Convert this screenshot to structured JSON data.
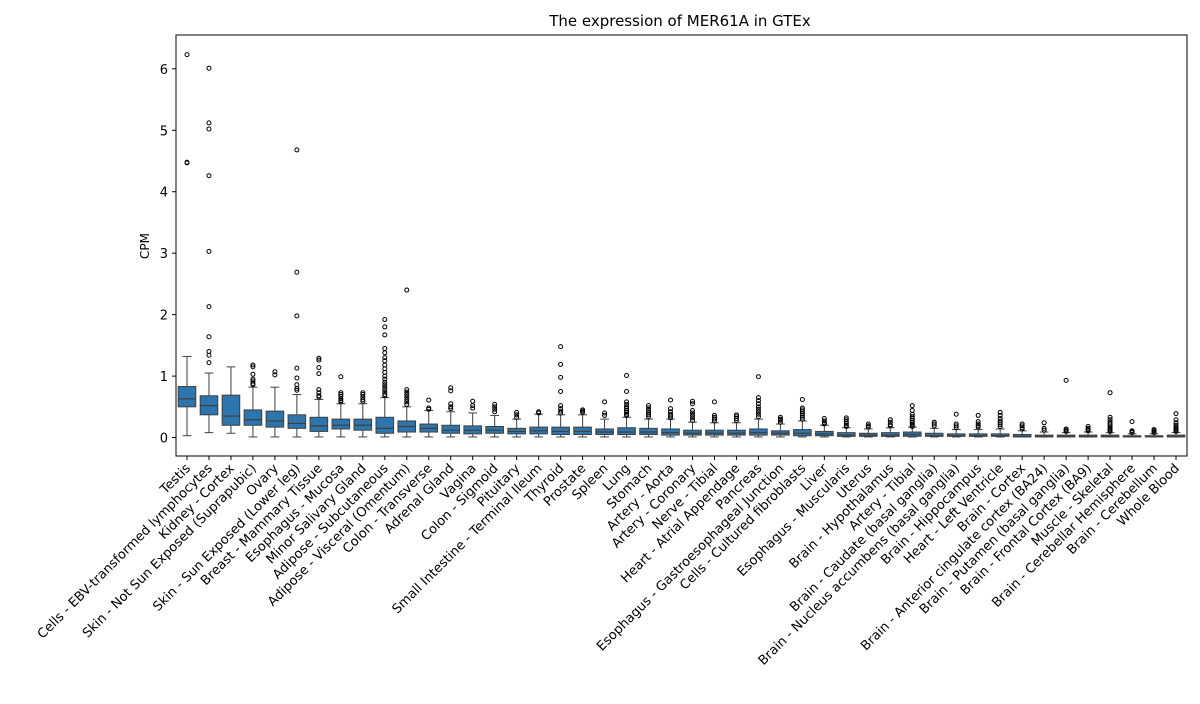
{
  "chart_data": {
    "type": "box",
    "title": "The expression of MER61A in GTEx",
    "xlabel": "",
    "ylabel": "CPM",
    "ylim": [
      -0.3,
      6.55
    ],
    "yticks": [
      0,
      1,
      2,
      3,
      4,
      5,
      6
    ],
    "grid": false,
    "legend": "none",
    "box_color": "#2e75ae",
    "categories": [
      "Testis",
      "Cells - EBV-transformed lymphocytes",
      "Kidney - Cortex",
      "Skin - Not Sun Exposed (Suprapubic)",
      "Ovary",
      "Skin - Sun Exposed (Lower leg)",
      "Breast - Mammary Tissue",
      "Esophagus - Mucosa",
      "Minor Salivary Gland",
      "Adipose - Subcutaneous",
      "Adipose - Visceral (Omentum)",
      "Colon - Transverse",
      "Adrenal Gland",
      "Vagina",
      "Colon - Sigmoid",
      "Pituitary",
      "Small Intestine - Terminal Ileum",
      "Thyroid",
      "Prostate",
      "Spleen",
      "Lung",
      "Stomach",
      "Artery - Aorta",
      "Artery - Coronary",
      "Nerve - Tibial",
      "Heart - Atrial Appendage",
      "Pancreas",
      "Esophagus - Gastroesophageal Junction",
      "Cells - Cultured fibroblasts",
      "Liver",
      "Esophagus - Muscularis",
      "Uterus",
      "Brain - Hypothalamus",
      "Artery - Tibial",
      "Brain - Caudate (basal ganglia)",
      "Brain - Nucleus accumbens (basal ganglia)",
      "Brain - Hippocampus",
      "Heart - Left Ventricle",
      "Brain - Cortex",
      "Brain - Anterior cingulate cortex (BA24)",
      "Brain - Putamen (basal ganglia)",
      "Brain - Frontal Cortex (BA9)",
      "Muscle - Skeletal",
      "Brain - Cerebellar Hemisphere",
      "Brain - Cerebellum",
      "Whole Blood"
    ],
    "boxes": [
      {
        "whislo": 0.03,
        "q1": 0.5,
        "med": 0.63,
        "q3": 0.83,
        "whishi": 1.32,
        "fliers": [
          6.23,
          4.48,
          4.47
        ]
      },
      {
        "whislo": 0.08,
        "q1": 0.37,
        "med": 0.52,
        "q3": 0.68,
        "whishi": 1.05,
        "fliers": [
          6.01,
          5.12,
          5.02,
          4.26,
          3.03,
          2.13,
          1.64,
          1.4,
          1.34,
          1.22
        ]
      },
      {
        "whislo": 0.07,
        "q1": 0.2,
        "med": 0.35,
        "q3": 0.69,
        "whishi": 1.15,
        "fliers": []
      },
      {
        "whislo": 0.01,
        "q1": 0.2,
        "med": 0.29,
        "q3": 0.45,
        "whishi": 0.82,
        "fliers": [
          1.18,
          1.15,
          1.03,
          0.95,
          0.92,
          0.88,
          0.86
        ]
      },
      {
        "whislo": 0.01,
        "q1": 0.17,
        "med": 0.27,
        "q3": 0.43,
        "whishi": 0.82,
        "fliers": [
          1.07,
          1.02
        ]
      },
      {
        "whislo": 0.01,
        "q1": 0.15,
        "med": 0.23,
        "q3": 0.37,
        "whishi": 0.7,
        "fliers": [
          4.68,
          2.69,
          1.98,
          1.13,
          0.97,
          0.86,
          0.8,
          0.77
        ]
      },
      {
        "whislo": 0.01,
        "q1": 0.1,
        "med": 0.19,
        "q3": 0.33,
        "whishi": 0.62,
        "fliers": [
          1.29,
          1.26,
          1.14,
          1.04,
          0.78,
          0.73,
          0.68,
          0.66
        ]
      },
      {
        "whislo": 0.01,
        "q1": 0.14,
        "med": 0.2,
        "q3": 0.3,
        "whishi": 0.55,
        "fliers": [
          0.99,
          0.73,
          0.7,
          0.67,
          0.63,
          0.6,
          0.58
        ]
      },
      {
        "whislo": 0.01,
        "q1": 0.12,
        "med": 0.2,
        "q3": 0.3,
        "whishi": 0.55,
        "fliers": [
          0.73,
          0.7,
          0.66,
          0.62,
          0.59
        ]
      },
      {
        "whislo": 0.01,
        "q1": 0.07,
        "med": 0.15,
        "q3": 0.33,
        "whishi": 0.65,
        "fliers": [
          1.92,
          1.8,
          1.67,
          1.45,
          1.38,
          1.3,
          1.25,
          1.18,
          1.12,
          1.06,
          1.0,
          0.95,
          0.9,
          0.86,
          0.82,
          0.78,
          0.74,
          0.7,
          0.68
        ]
      },
      {
        "whislo": 0.01,
        "q1": 0.09,
        "med": 0.18,
        "q3": 0.27,
        "whishi": 0.5,
        "fliers": [
          2.4,
          0.78,
          0.74,
          0.7,
          0.66,
          0.62,
          0.58,
          0.54
        ]
      },
      {
        "whislo": 0.01,
        "q1": 0.09,
        "med": 0.15,
        "q3": 0.22,
        "whishi": 0.44,
        "fliers": [
          0.61,
          0.48,
          0.46
        ]
      },
      {
        "whislo": 0.01,
        "q1": 0.07,
        "med": 0.12,
        "q3": 0.2,
        "whishi": 0.42,
        "fliers": [
          0.81,
          0.76,
          0.55,
          0.5,
          0.47
        ]
      },
      {
        "whislo": 0.01,
        "q1": 0.06,
        "med": 0.12,
        "q3": 0.19,
        "whishi": 0.4,
        "fliers": [
          0.59,
          0.52,
          0.48
        ]
      },
      {
        "whislo": 0.01,
        "q1": 0.07,
        "med": 0.12,
        "q3": 0.18,
        "whishi": 0.36,
        "fliers": [
          0.54,
          0.5,
          0.46,
          0.42
        ]
      },
      {
        "whislo": 0.01,
        "q1": 0.06,
        "med": 0.1,
        "q3": 0.15,
        "whishi": 0.3,
        "fliers": [
          0.41,
          0.37,
          0.33
        ]
      },
      {
        "whislo": 0.01,
        "q1": 0.06,
        "med": 0.11,
        "q3": 0.17,
        "whishi": 0.38,
        "fliers": [
          0.42,
          0.4
        ]
      },
      {
        "whislo": 0.01,
        "q1": 0.05,
        "med": 0.1,
        "q3": 0.17,
        "whishi": 0.37,
        "fliers": [
          1.48,
          1.19,
          0.98,
          0.75,
          0.52,
          0.47,
          0.43,
          0.4
        ]
      },
      {
        "whislo": 0.01,
        "q1": 0.05,
        "med": 0.1,
        "q3": 0.17,
        "whishi": 0.37,
        "fliers": [
          0.45,
          0.43,
          0.41
        ]
      },
      {
        "whislo": 0.01,
        "q1": 0.05,
        "med": 0.09,
        "q3": 0.14,
        "whishi": 0.3,
        "fliers": [
          0.58,
          0.4,
          0.36
        ]
      },
      {
        "whislo": 0.01,
        "q1": 0.05,
        "med": 0.09,
        "q3": 0.16,
        "whishi": 0.33,
        "fliers": [
          1.01,
          0.75,
          0.58,
          0.54,
          0.5,
          0.47,
          0.44,
          0.41,
          0.38,
          0.36
        ]
      },
      {
        "whislo": 0.01,
        "q1": 0.05,
        "med": 0.09,
        "q3": 0.15,
        "whishi": 0.3,
        "fliers": [
          0.52,
          0.48,
          0.44,
          0.4,
          0.37,
          0.34
        ]
      },
      {
        "whislo": 0.01,
        "q1": 0.04,
        "med": 0.08,
        "q3": 0.14,
        "whishi": 0.3,
        "fliers": [
          0.61,
          0.47,
          0.42,
          0.38,
          0.35,
          0.32
        ]
      },
      {
        "whislo": 0.01,
        "q1": 0.04,
        "med": 0.07,
        "q3": 0.12,
        "whishi": 0.25,
        "fliers": [
          0.59,
          0.55,
          0.44,
          0.4,
          0.36,
          0.32,
          0.28
        ]
      },
      {
        "whislo": 0.01,
        "q1": 0.04,
        "med": 0.07,
        "q3": 0.12,
        "whishi": 0.24,
        "fliers": [
          0.58,
          0.36,
          0.33,
          0.3,
          0.27
        ]
      },
      {
        "whislo": 0.01,
        "q1": 0.04,
        "med": 0.07,
        "q3": 0.12,
        "whishi": 0.24,
        "fliers": [
          0.37,
          0.34,
          0.31,
          0.28
        ]
      },
      {
        "whislo": 0.01,
        "q1": 0.04,
        "med": 0.08,
        "q3": 0.14,
        "whishi": 0.3,
        "fliers": [
          0.99,
          0.65,
          0.6,
          0.55,
          0.5,
          0.46,
          0.42,
          0.38,
          0.34
        ]
      },
      {
        "whislo": 0.01,
        "q1": 0.04,
        "med": 0.07,
        "q3": 0.11,
        "whishi": 0.22,
        "fliers": [
          0.33,
          0.3,
          0.28,
          0.25
        ]
      },
      {
        "whislo": 0.01,
        "q1": 0.03,
        "med": 0.07,
        "q3": 0.13,
        "whishi": 0.27,
        "fliers": [
          0.62,
          0.48,
          0.45,
          0.42,
          0.39,
          0.36,
          0.33,
          0.3
        ]
      },
      {
        "whislo": 0.01,
        "q1": 0.03,
        "med": 0.06,
        "q3": 0.1,
        "whishi": 0.2,
        "fliers": [
          0.31,
          0.27,
          0.24,
          0.22
        ]
      },
      {
        "whislo": 0.01,
        "q1": 0.02,
        "med": 0.04,
        "q3": 0.08,
        "whishi": 0.16,
        "fliers": [
          0.32,
          0.29,
          0.26,
          0.23,
          0.2,
          0.18
        ]
      },
      {
        "whislo": 0.01,
        "q1": 0.02,
        "med": 0.04,
        "q3": 0.07,
        "whishi": 0.14,
        "fliers": [
          0.22,
          0.19,
          0.17
        ]
      },
      {
        "whislo": 0.01,
        "q1": 0.02,
        "med": 0.04,
        "q3": 0.08,
        "whishi": 0.16,
        "fliers": [
          0.29,
          0.25,
          0.21,
          0.19
        ]
      },
      {
        "whislo": 0.01,
        "q1": 0.02,
        "med": 0.05,
        "q3": 0.09,
        "whishi": 0.17,
        "fliers": [
          0.52,
          0.44,
          0.38,
          0.34,
          0.31,
          0.28,
          0.25,
          0.22,
          0.2,
          0.18
        ]
      },
      {
        "whislo": 0.01,
        "q1": 0.02,
        "med": 0.03,
        "q3": 0.07,
        "whishi": 0.15,
        "fliers": [
          0.25,
          0.22,
          0.19
        ]
      },
      {
        "whislo": 0.01,
        "q1": 0.02,
        "med": 0.03,
        "q3": 0.06,
        "whishi": 0.13,
        "fliers": [
          0.38,
          0.22,
          0.19,
          0.16
        ]
      },
      {
        "whislo": 0.01,
        "q1": 0.02,
        "med": 0.03,
        "q3": 0.06,
        "whishi": 0.13,
        "fliers": [
          0.36,
          0.26,
          0.22,
          0.19,
          0.17
        ]
      },
      {
        "whislo": 0.01,
        "q1": 0.02,
        "med": 0.03,
        "q3": 0.06,
        "whishi": 0.14,
        "fliers": [
          0.41,
          0.36,
          0.31,
          0.27,
          0.24,
          0.21,
          0.18
        ]
      },
      {
        "whislo": 0.01,
        "q1": 0.01,
        "med": 0.02,
        "q3": 0.05,
        "whishi": 0.11,
        "fliers": [
          0.22,
          0.19,
          0.16,
          0.14
        ]
      },
      {
        "whislo": 0.01,
        "q1": 0.01,
        "med": 0.02,
        "q3": 0.04,
        "whishi": 0.09,
        "fliers": [
          0.24,
          0.15,
          0.12
        ]
      },
      {
        "whislo": 0.01,
        "q1": 0.01,
        "med": 0.02,
        "q3": 0.04,
        "whishi": 0.08,
        "fliers": [
          0.93,
          0.14,
          0.12,
          0.1
        ]
      },
      {
        "whislo": 0.01,
        "q1": 0.01,
        "med": 0.02,
        "q3": 0.04,
        "whishi": 0.09,
        "fliers": [
          0.18,
          0.15,
          0.13,
          0.11
        ]
      },
      {
        "whislo": 0.01,
        "q1": 0.01,
        "med": 0.02,
        "q3": 0.04,
        "whishi": 0.08,
        "fliers": [
          0.73,
          0.33,
          0.29,
          0.25,
          0.22,
          0.19,
          0.16,
          0.14,
          0.12,
          0.1
        ]
      },
      {
        "whislo": 0.01,
        "q1": 0.01,
        "med": 0.02,
        "q3": 0.03,
        "whishi": 0.06,
        "fliers": [
          0.26,
          0.11,
          0.09,
          0.08
        ]
      },
      {
        "whislo": 0.01,
        "q1": 0.01,
        "med": 0.02,
        "q3": 0.03,
        "whishi": 0.06,
        "fliers": [
          0.13,
          0.11,
          0.09,
          0.08
        ]
      },
      {
        "whislo": 0.01,
        "q1": 0.01,
        "med": 0.02,
        "q3": 0.04,
        "whishi": 0.08,
        "fliers": [
          0.39,
          0.29,
          0.24,
          0.2,
          0.17,
          0.15,
          0.13,
          0.11,
          0.1
        ]
      }
    ]
  }
}
